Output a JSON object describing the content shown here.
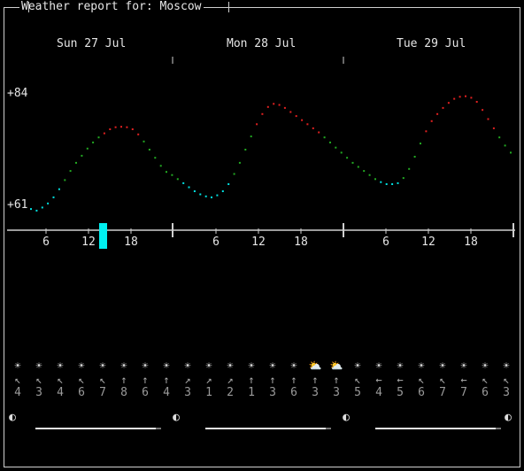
{
  "window": {
    "title": "Weather report for: Moscow"
  },
  "days": [
    "Sun 27 Jul",
    "Mon 28 Jul",
    "Tue 29 Jul"
  ],
  "y_axis": {
    "max_label": "+84",
    "min_label": "+61"
  },
  "hour_labels": [
    "6",
    "12",
    "18"
  ],
  "colors": {
    "cold": "#00e0e0",
    "mild": "#22aa22",
    "warm": "#e02020",
    "frame": "#cfcfcf",
    "now": "#00f0f0"
  },
  "chart_data": {
    "type": "line",
    "ylim": [
      61,
      84
    ],
    "series": [
      {
        "values": [
          61.5,
          61.2,
          61.8,
          62.6,
          63.8,
          65.4,
          67.2,
          69.0,
          70.6,
          72.0,
          73.4,
          74.6,
          75.6,
          76.4,
          77.2,
          77.6,
          77.7,
          77.6,
          77.2,
          76.2,
          74.8,
          73.2,
          71.6,
          70.0,
          68.8,
          68.2,
          67.4,
          66.6,
          65.8,
          65.0,
          64.4,
          64.0,
          63.8,
          64.2,
          65.0,
          66.4,
          68.4,
          70.6,
          73.2,
          75.8,
          78.2,
          80.2,
          81.6,
          82.2,
          82.0,
          81.4,
          80.6,
          79.8,
          79.0,
          78.2,
          77.4,
          76.6,
          75.6,
          74.6,
          73.6,
          72.6,
          71.6,
          70.6,
          69.8,
          69.0,
          68.2,
          67.4,
          66.8,
          66.4,
          66.4,
          66.6,
          67.6,
          69.4,
          71.8,
          74.4,
          76.8,
          78.8,
          80.2,
          81.4,
          82.4,
          83.2,
          83.6,
          83.7,
          83.4,
          82.6,
          81.0,
          79.2,
          77.4,
          75.6,
          74.0,
          72.6
        ]
      }
    ]
  },
  "forecast": {
    "icons": [
      "☀",
      "☀",
      "☀",
      "☀",
      "☀",
      "☀",
      "☀",
      "☀",
      "☀",
      "☀",
      "☀",
      "☀",
      "☀",
      "☀",
      "⛅",
      "⛅",
      "☀",
      "☀",
      "☀",
      "☀",
      "☀",
      "☀",
      "☀",
      "☀"
    ],
    "wind_dirs": [
      "↖",
      "↖",
      "↖",
      "↖",
      "↖",
      "↑",
      "↑",
      "↑",
      "↗",
      "↗",
      "↗",
      "↑",
      "↑",
      "↑",
      "↑",
      "↑",
      "↖",
      "←",
      "←",
      "↖",
      "↖",
      "←",
      "↖",
      "↖"
    ],
    "wind_speeds": [
      "4",
      "3",
      "4",
      "6",
      "7",
      "8",
      "6",
      "4",
      "3",
      "1",
      "2",
      "1",
      "3",
      "6",
      "3",
      "3",
      "5",
      "4",
      "5",
      "6",
      "7",
      "7",
      "6",
      "3"
    ]
  },
  "moon": {
    "phases": [
      "◐",
      "◐",
      "◐",
      "◐"
    ]
  }
}
